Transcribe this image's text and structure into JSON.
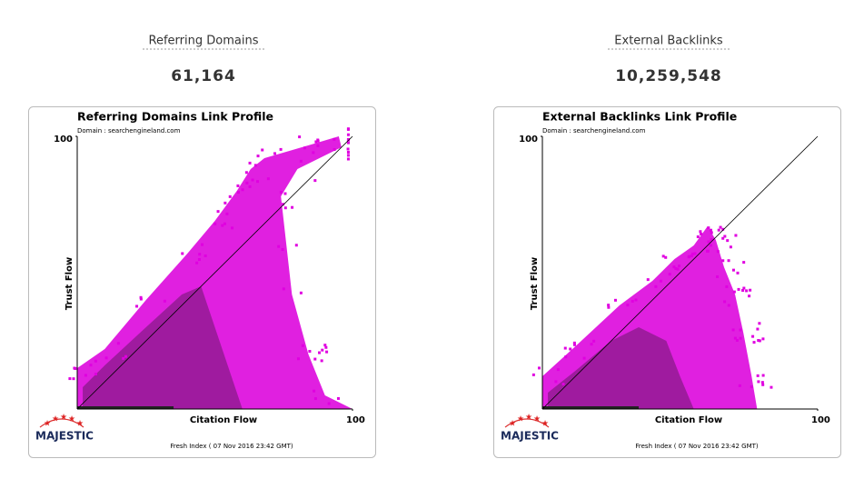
{
  "panels": [
    {
      "heading": "Referring Domains",
      "value": "61,164",
      "chart": {
        "title": "Referring Domains Link Profile",
        "domain": "Domain : searchengineland.com",
        "x_label": "Citation Flow",
        "y_label": "Trust Flow",
        "xlim": [
          0,
          100
        ],
        "ylim": [
          0,
          100
        ],
        "xticks": [
          100
        ],
        "yticks": [
          100
        ],
        "logo": "MAJESTIC",
        "footer": "Fresh Index ( 07 Nov 2016 23:42 GMT)"
      }
    },
    {
      "heading": "External Backlinks",
      "value": "10,259,548",
      "chart": {
        "title": "External Backlinks Link Profile",
        "domain": "Domain : searchengineland.com",
        "x_label": "Citation Flow",
        "y_label": "Trust Flow",
        "xlim": [
          0,
          100
        ],
        "ylim": [
          0,
          100
        ],
        "xticks": [
          100
        ],
        "yticks": [
          100
        ],
        "logo": "MAJESTIC",
        "footer": "Fresh Index ( 07 Nov 2016 23:42 GMT)"
      }
    }
  ]
}
